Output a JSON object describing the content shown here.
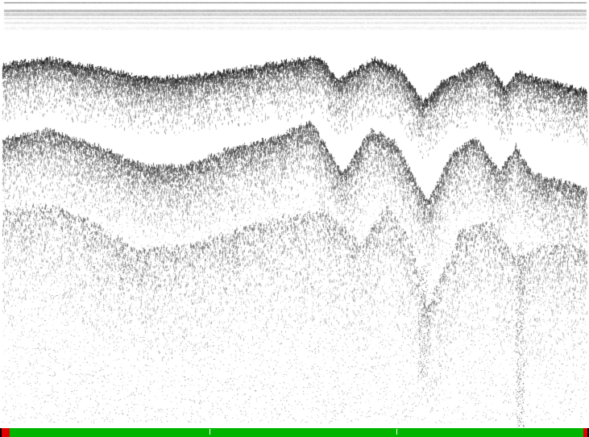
{
  "echogram": {
    "description_free": true,
    "background_color": "#ffffff",
    "ink_color": "#000000",
    "surface_band_color": "#9a9a9a"
  },
  "timeline": {
    "good_color": "#00b400",
    "bad_color": "#e00000",
    "edge_color": "#000000",
    "segments": [
      {
        "status": "bad",
        "fraction": 0.017
      },
      {
        "status": "good",
        "fraction": 0.974
      },
      {
        "status": "bad",
        "fraction": 0.009
      }
    ],
    "marker_fractions": [
      0.355,
      0.673
    ]
  }
}
